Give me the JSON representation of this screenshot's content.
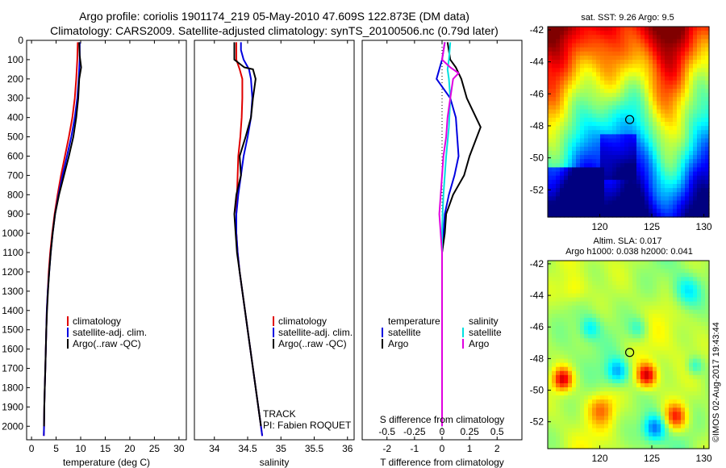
{
  "titles": {
    "line1": "Argo profile: coriolis 1901174_219 05-May-2010 47.609S 122.873E (DM data)",
    "line2": "Climatology: CARS2009. Satellite-adjusted climatology: synTS_20100506.nc (0.79d later)"
  },
  "colors": {
    "climatology": "#e00000",
    "satellite": "#0000e0",
    "argo": "#000000",
    "salinity_satellite": "#00e0e0",
    "salinity_argo": "#e000e0"
  },
  "chart_data": [
    {
      "type": "line",
      "id": "temperature",
      "xlabel": "temperature (deg C)",
      "ylabel": "",
      "xlim": [
        -1,
        31.5
      ],
      "ylim": [
        2070,
        0
      ],
      "xticks": [
        0,
        5,
        10,
        15,
        20,
        25,
        30
      ],
      "yticks": [
        0,
        100,
        200,
        300,
        400,
        500,
        600,
        700,
        800,
        900,
        1000,
        1100,
        1200,
        1300,
        1400,
        1500,
        1600,
        1700,
        1800,
        1900,
        2000
      ],
      "legend": [
        "climatology",
        "satellite-adj. clim.",
        "Argo(..raw -QC)"
      ],
      "series": [
        {
          "name": "climatology",
          "color": "#e00000",
          "points": [
            [
              9.4,
              10
            ],
            [
              9.3,
              100
            ],
            [
              9.1,
              200
            ],
            [
              8.8,
              300
            ],
            [
              8.3,
              400
            ],
            [
              7.6,
              500
            ],
            [
              6.8,
              600
            ],
            [
              6.0,
              700
            ],
            [
              5.3,
              800
            ],
            [
              4.7,
              900
            ],
            [
              4.2,
              1000
            ],
            [
              3.8,
              1100
            ],
            [
              3.5,
              1200
            ],
            [
              3.3,
              1300
            ],
            [
              3.1,
              1400
            ],
            [
              3.0,
              1500
            ],
            [
              2.9,
              1600
            ],
            [
              2.8,
              1700
            ],
            [
              2.7,
              1800
            ],
            [
              2.6,
              1900
            ],
            [
              2.55,
              2000
            ],
            [
              2.5,
              2050
            ]
          ]
        },
        {
          "name": "satellite-adj. clim.",
          "color": "#0000e0",
          "points": [
            [
              9.8,
              10
            ],
            [
              9.8,
              100
            ],
            [
              9.6,
              200
            ],
            [
              9.3,
              300
            ],
            [
              8.8,
              400
            ],
            [
              8.1,
              500
            ],
            [
              7.2,
              600
            ],
            [
              6.3,
              700
            ],
            [
              5.5,
              800
            ],
            [
              4.8,
              900
            ],
            [
              4.3,
              1000
            ],
            [
              3.9,
              1100
            ],
            [
              3.6,
              1200
            ],
            [
              3.3,
              1300
            ],
            [
              3.1,
              1400
            ],
            [
              3.0,
              1500
            ],
            [
              2.9,
              1600
            ],
            [
              2.8,
              1700
            ],
            [
              2.7,
              1800
            ],
            [
              2.6,
              1900
            ],
            [
              2.55,
              2000
            ],
            [
              2.5,
              2050
            ]
          ]
        },
        {
          "name": "Argo(..raw -QC)",
          "color": "#000000",
          "points": [
            [
              9.7,
              10
            ],
            [
              9.8,
              80
            ],
            [
              10.1,
              140
            ],
            [
              9.7,
              200
            ],
            [
              9.5,
              300
            ],
            [
              9.1,
              400
            ],
            [
              8.5,
              500
            ],
            [
              7.6,
              600
            ],
            [
              6.6,
              700
            ],
            [
              5.6,
              800
            ],
            [
              4.8,
              900
            ],
            [
              4.3,
              1000
            ],
            [
              3.9,
              1100
            ],
            [
              3.6,
              1200
            ],
            [
              3.35,
              1300
            ],
            [
              3.15,
              1400
            ],
            [
              3.0,
              1500
            ],
            [
              2.9,
              1600
            ],
            [
              2.8,
              1700
            ],
            [
              2.7,
              1800
            ],
            [
              2.6,
              1900
            ],
            [
              2.55,
              2000
            ]
          ]
        }
      ]
    },
    {
      "type": "line",
      "id": "salinity",
      "xlabel": "salinity",
      "xlim": [
        33.7,
        36.1
      ],
      "ylim": [
        2070,
        0
      ],
      "xticks": [
        34,
        34.5,
        35,
        35.5,
        36
      ],
      "legend": [
        "climatology",
        "satellite-adj. clim.",
        "Argo(..raw -QC)"
      ],
      "annotations": [
        "TRACK",
        "PI: Fabien ROQUET"
      ],
      "series": [
        {
          "name": "climatology",
          "color": "#e00000",
          "points": [
            [
              34.33,
              10
            ],
            [
              34.33,
              100
            ],
            [
              34.38,
              150
            ],
            [
              34.42,
              200
            ],
            [
              34.42,
              300
            ],
            [
              34.41,
              400
            ],
            [
              34.39,
              500
            ],
            [
              34.36,
              600
            ],
            [
              34.35,
              700
            ],
            [
              34.34,
              800
            ],
            [
              34.33,
              900
            ],
            [
              34.33,
              1000
            ],
            [
              34.35,
              1100
            ],
            [
              34.38,
              1200
            ],
            [
              34.42,
              1300
            ],
            [
              34.46,
              1400
            ],
            [
              34.5,
              1500
            ],
            [
              34.54,
              1600
            ],
            [
              34.58,
              1700
            ],
            [
              34.62,
              1800
            ],
            [
              34.66,
              1900
            ],
            [
              34.7,
              2000
            ],
            [
              34.72,
              2050
            ]
          ]
        },
        {
          "name": "satellite-adj. clim.",
          "color": "#0000e0",
          "points": [
            [
              34.4,
              10
            ],
            [
              34.4,
              50
            ],
            [
              34.44,
              100
            ],
            [
              34.52,
              150
            ],
            [
              34.55,
              200
            ],
            [
              34.57,
              300
            ],
            [
              34.55,
              400
            ],
            [
              34.5,
              500
            ],
            [
              34.44,
              600
            ],
            [
              34.4,
              700
            ],
            [
              34.36,
              800
            ],
            [
              34.33,
              900
            ],
            [
              34.33,
              1000
            ],
            [
              34.35,
              1100
            ],
            [
              34.38,
              1200
            ],
            [
              34.42,
              1300
            ],
            [
              34.46,
              1400
            ],
            [
              34.5,
              1500
            ],
            [
              34.54,
              1600
            ],
            [
              34.58,
              1700
            ],
            [
              34.62,
              1800
            ],
            [
              34.66,
              1900
            ],
            [
              34.7,
              2000
            ],
            [
              34.72,
              2050
            ]
          ]
        },
        {
          "name": "Argo(..raw -QC)",
          "color": "#000000",
          "points": [
            [
              34.3,
              10
            ],
            [
              34.3,
              100
            ],
            [
              34.45,
              140
            ],
            [
              34.58,
              150
            ],
            [
              34.62,
              200
            ],
            [
              34.58,
              300
            ],
            [
              34.55,
              400
            ],
            [
              34.47,
              500
            ],
            [
              34.38,
              600
            ],
            [
              34.4,
              700
            ],
            [
              34.33,
              800
            ],
            [
              34.3,
              900
            ],
            [
              34.32,
              1000
            ],
            [
              34.34,
              1100
            ],
            [
              34.38,
              1200
            ],
            [
              34.42,
              1300
            ],
            [
              34.46,
              1400
            ],
            [
              34.5,
              1500
            ],
            [
              34.54,
              1600
            ],
            [
              34.58,
              1700
            ],
            [
              34.62,
              1800
            ],
            [
              34.66,
              1900
            ],
            [
              34.7,
              2000
            ]
          ]
        }
      ]
    },
    {
      "type": "line",
      "id": "difference",
      "xlabel": "T difference from climatology",
      "xlabel_top": "S difference from climatology",
      "xlim": [
        -2.9,
        2.9
      ],
      "ylim": [
        2070,
        0
      ],
      "xticks": [
        -2,
        -1,
        0,
        1,
        2
      ],
      "xticks_s": [
        "-0.5",
        "-0.25",
        "0",
        "0.25",
        "0.5"
      ],
      "legend_temperature": {
        "heading": "temperature",
        "items": [
          "satellite",
          "Argo"
        ]
      },
      "legend_salinity": {
        "heading": "salinity",
        "items": [
          "satellite",
          "Argo"
        ]
      },
      "series": [
        {
          "name": "temperature satellite",
          "color": "#0000e0",
          "points": [
            [
              0.1,
              10
            ],
            [
              0.0,
              100
            ],
            [
              -0.2,
              200
            ],
            [
              0.3,
              300
            ],
            [
              0.5,
              400
            ],
            [
              0.55,
              500
            ],
            [
              0.6,
              600
            ],
            [
              0.45,
              700
            ],
            [
              0.25,
              800
            ],
            [
              0.1,
              900
            ],
            [
              0.05,
              1000
            ],
            [
              0.0,
              1100
            ],
            [
              0,
              1200
            ],
            [
              0,
              1300
            ],
            [
              0,
              1400
            ],
            [
              0,
              1500
            ],
            [
              0,
              1600
            ],
            [
              0,
              1700
            ],
            [
              0,
              1800
            ],
            [
              0,
              1900
            ],
            [
              0,
              2000
            ]
          ]
        },
        {
          "name": "temperature Argo",
          "color": "#000000",
          "points": [
            [
              0.2,
              10
            ],
            [
              0.3,
              100
            ],
            [
              0.5,
              140
            ],
            [
              0.7,
              200
            ],
            [
              0.9,
              300
            ],
            [
              1.4,
              450
            ],
            [
              1.0,
              600
            ],
            [
              0.8,
              700
            ],
            [
              0.4,
              800
            ],
            [
              0.15,
              900
            ],
            [
              0.1,
              1000
            ],
            [
              0.0,
              1100
            ],
            [
              0,
              1200
            ],
            [
              0,
              1300
            ],
            [
              0,
              1400
            ],
            [
              0,
              1500
            ],
            [
              0,
              1600
            ],
            [
              0,
              1700
            ],
            [
              0,
              1800
            ],
            [
              0,
              1900
            ],
            [
              0,
              2000
            ]
          ]
        },
        {
          "name": "salinity satellite",
          "color": "#00e0e0",
          "points": [
            [
              0.3,
              10
            ],
            [
              0.25,
              100
            ],
            [
              0.2,
              150
            ],
            [
              0.25,
              200
            ],
            [
              0.3,
              300
            ],
            [
              0.25,
              450
            ],
            [
              0.15,
              600
            ],
            [
              0.1,
              700
            ],
            [
              0.05,
              800
            ],
            [
              0.02,
              900
            ],
            [
              0.0,
              1000
            ],
            [
              0,
              1100
            ],
            [
              0,
              1200
            ],
            [
              0,
              1300
            ],
            [
              0,
              1400
            ],
            [
              0,
              1500
            ],
            [
              0,
              1600
            ],
            [
              0,
              1700
            ],
            [
              0,
              1800
            ],
            [
              0,
              1900
            ],
            [
              0,
              2000
            ]
          ]
        },
        {
          "name": "salinity Argo",
          "color": "#e000e0",
          "points": [
            [
              0.1,
              10
            ],
            [
              0.0,
              100
            ],
            [
              0.3,
              140
            ],
            [
              0.6,
              170
            ],
            [
              0.4,
              200
            ],
            [
              0.3,
              300
            ],
            [
              0.2,
              400
            ],
            [
              0.15,
              500
            ],
            [
              0.05,
              600
            ],
            [
              -0.05,
              800
            ],
            [
              -0.1,
              900
            ],
            [
              -0.05,
              1000
            ],
            [
              0,
              1100
            ],
            [
              0,
              1200
            ],
            [
              0,
              1300
            ],
            [
              0,
              1400
            ],
            [
              0,
              1500
            ],
            [
              0,
              1600
            ],
            [
              0,
              1700
            ],
            [
              0,
              1800
            ],
            [
              0,
              1900
            ],
            [
              0,
              2000
            ]
          ]
        }
      ]
    },
    {
      "type": "heatmap",
      "id": "sst-map",
      "title": "sat. SST: 9.26  Argo: 9.5",
      "xticks": [
        120,
        125,
        130
      ],
      "yticks": [
        -42,
        -44,
        -46,
        -48,
        -50,
        -52
      ],
      "xlim": [
        115,
        130.5
      ],
      "ylim": [
        -53.7,
        -41.8
      ],
      "marker": {
        "lon": 122.873,
        "lat": -47.609
      }
    },
    {
      "type": "heatmap",
      "id": "sla-map",
      "title": "Altim. SLA: 0.017",
      "subtitle": "Argo h1000: 0.038  h2000: 0.041",
      "xticks": [
        120,
        125,
        130
      ],
      "yticks": [
        -42,
        -44,
        -46,
        -48,
        -50,
        -52
      ],
      "xlim": [
        115,
        130.5
      ],
      "ylim": [
        -53.7,
        -41.8
      ],
      "marker": {
        "lon": 122.873,
        "lat": -47.609
      }
    }
  ],
  "watermark": "©IMOS 02-Aug-2017 19:43:44"
}
